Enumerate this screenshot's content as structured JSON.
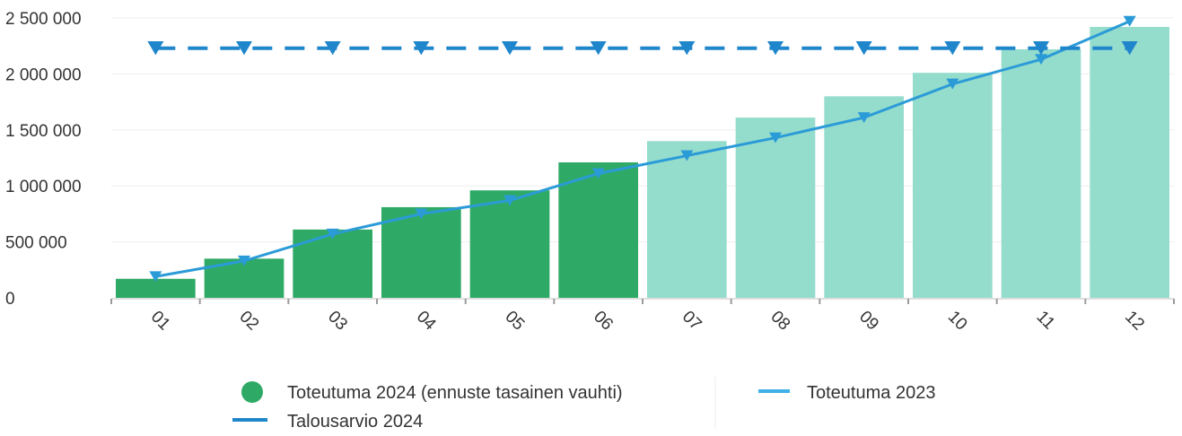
{
  "chart_data": {
    "type": "bar",
    "categories": [
      "01",
      "02",
      "03",
      "04",
      "05",
      "06",
      "07",
      "08",
      "09",
      "10",
      "11",
      "12"
    ],
    "ylim": [
      0,
      2500000
    ],
    "y_ticks": [
      {
        "value": 0,
        "label": "0"
      },
      {
        "value": 500000,
        "label": "500 000"
      },
      {
        "value": 1000000,
        "label": "1 000 000"
      },
      {
        "value": 1500000,
        "label": "1 500 000"
      },
      {
        "value": 2000000,
        "label": "2 000 000"
      },
      {
        "value": 2500000,
        "label": "2 500 000"
      }
    ],
    "grid": true,
    "legend_position": "bottom",
    "series": [
      {
        "name": "Toteutuma 2024 (ennuste tasainen vauhti)",
        "kind": "bar",
        "values": [
          170000,
          350000,
          610000,
          810000,
          960000,
          1210000,
          1400000,
          1610000,
          1800000,
          2010000,
          2220000,
          2420000
        ],
        "actual_months": 6,
        "color_actual": "#2eaa66",
        "color_forecast": "#94dccc"
      },
      {
        "name": "Toteutuma 2023",
        "kind": "line",
        "values": [
          190000,
          330000,
          570000,
          750000,
          870000,
          1110000,
          1270000,
          1430000,
          1610000,
          1910000,
          2130000,
          2470000
        ],
        "color": "#2b9bd8",
        "marker": "triangle-down"
      },
      {
        "name": "Talousarvio 2024",
        "kind": "line",
        "style": "dashed",
        "values": [
          2230000,
          2230000,
          2230000,
          2230000,
          2230000,
          2230000,
          2230000,
          2230000,
          2230000,
          2230000,
          2230000,
          2230000
        ],
        "color": "#1f86cc",
        "marker": "triangle-down"
      }
    ]
  },
  "legend": {
    "items": [
      {
        "label": "Toteutuma 2024 (ennuste tasainen vauhti)",
        "symbol": "circle",
        "color": "#2eaa66"
      },
      {
        "label": "Toteutuma 2023",
        "symbol": "line",
        "color": "#40b0e8"
      },
      {
        "label": "Talousarvio 2024",
        "symbol": "line",
        "color": "#1f86cc"
      }
    ]
  }
}
